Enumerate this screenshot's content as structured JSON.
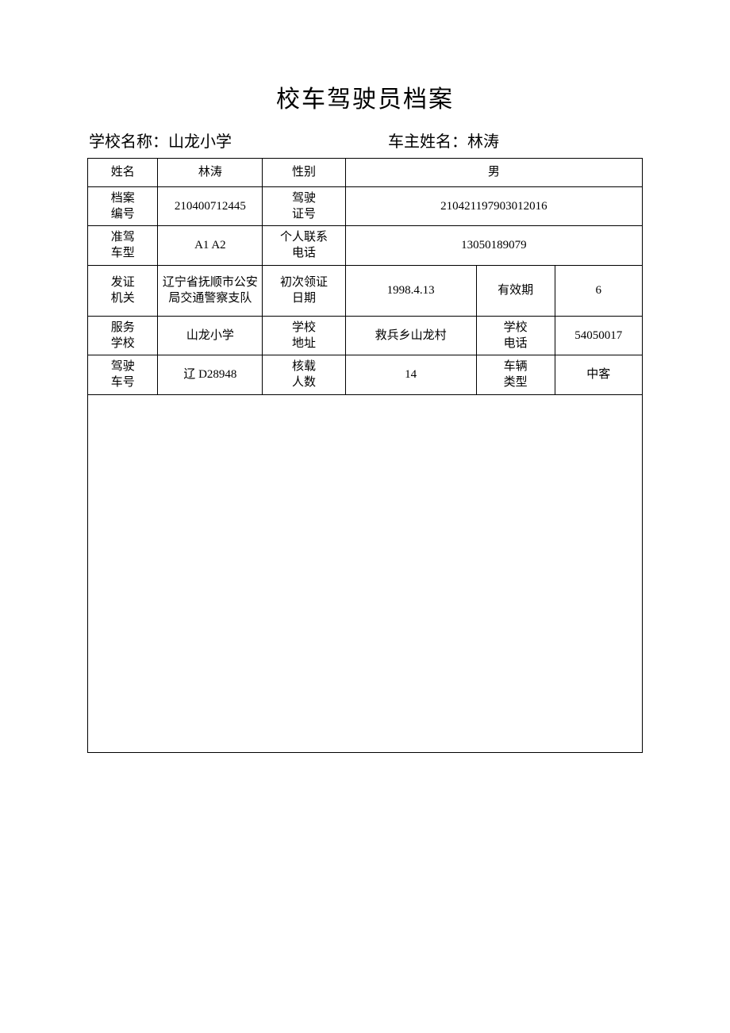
{
  "document": {
    "title": "校车驾驶员档案",
    "school_name_label": "学校名称：",
    "school_name": "山龙小学",
    "owner_name_label": "车主姓名：",
    "owner_name": "林涛"
  },
  "table": {
    "r1": {
      "name_label": "姓名",
      "name_value": "林涛",
      "gender_label": "性别",
      "gender_value": "男"
    },
    "r2": {
      "file_no_label": "档案\n编号",
      "file_no_value": "210400712445",
      "license_no_label": "驾驶\n证号",
      "license_no_value": "210421197903012016"
    },
    "r3": {
      "permit_type_label": "准驾\n车型",
      "permit_type_value": "A1 A2",
      "phone_label": "个人联系\n电话",
      "phone_value": "13050189079"
    },
    "r4": {
      "issuer_label": "发证\n机关",
      "issuer_value": "辽宁省抚顺市公安局交通警察支队",
      "first_issue_label": "初次领证\n日期",
      "first_issue_value": "1998.4.13",
      "validity_label": "有效期",
      "validity_value": "6"
    },
    "r5": {
      "service_school_label": "服务\n学校",
      "service_school_value": "山龙小学",
      "school_addr_label": "学校\n地址",
      "school_addr_value": "救兵乡山龙村",
      "school_phone_label": "学校\n电话",
      "school_phone_value": "54050017"
    },
    "r6": {
      "plate_label": "驾驶\n车号",
      "plate_value": "辽 D28948",
      "capacity_label": "核载\n人数",
      "capacity_value": "14",
      "vehicle_type_label": "车辆\n类型",
      "vehicle_type_value": "中客"
    }
  }
}
